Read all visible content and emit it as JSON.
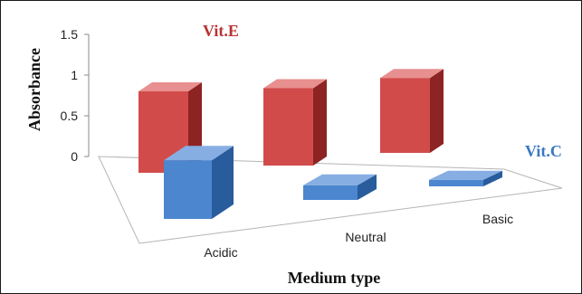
{
  "chart_data": {
    "type": "bar",
    "categories": [
      "Acidic",
      "Neutral",
      "Basic"
    ],
    "series": [
      {
        "name": "Vit.E",
        "values": [
          1.0,
          0.95,
          0.92
        ]
      },
      {
        "name": "Vit.C",
        "values": [
          0.72,
          0.18,
          0.08
        ]
      }
    ],
    "xlabel": "Medium type",
    "ylabel": "Absorbance",
    "ylim": [
      0,
      1.5
    ],
    "yticks": [
      "0",
      "0.5",
      "1",
      "1.5"
    ],
    "grid": false,
    "legend": "series labels placed on chart"
  },
  "colors": {
    "vitE_front": "#d24b4b",
    "vitE_side": "#8e2323",
    "vitE_top": "#e88f8f",
    "vitC_front": "#4b86cf",
    "vitC_side": "#285c9c",
    "vitC_top": "#86aee2",
    "vitE_label": "#b83232",
    "vitC_label": "#3b78c2"
  }
}
